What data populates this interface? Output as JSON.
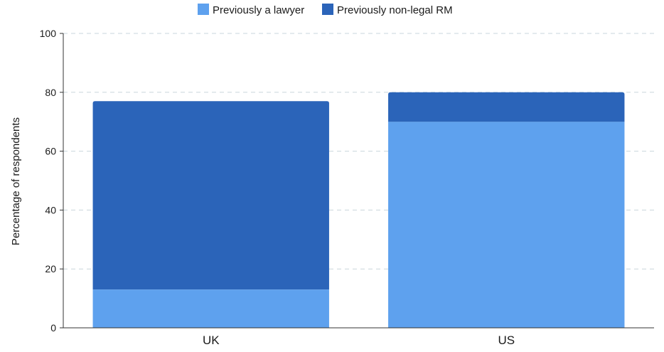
{
  "chart_data": {
    "type": "bar",
    "stacked": true,
    "categories": [
      "UK",
      "US"
    ],
    "series": [
      {
        "name": "Previously a lawyer",
        "values": [
          13,
          70
        ],
        "color": "#5ea1ee"
      },
      {
        "name": "Previously non-legal RM",
        "values": [
          64,
          10
        ],
        "color": "#2b64b9"
      }
    ],
    "ylabel": "Percentage of respondents",
    "ylim": [
      0,
      100
    ],
    "yticks": [
      "0",
      "20",
      "40",
      "60",
      "80",
      "100"
    ],
    "grid": true,
    "legend_position": "top-center"
  }
}
